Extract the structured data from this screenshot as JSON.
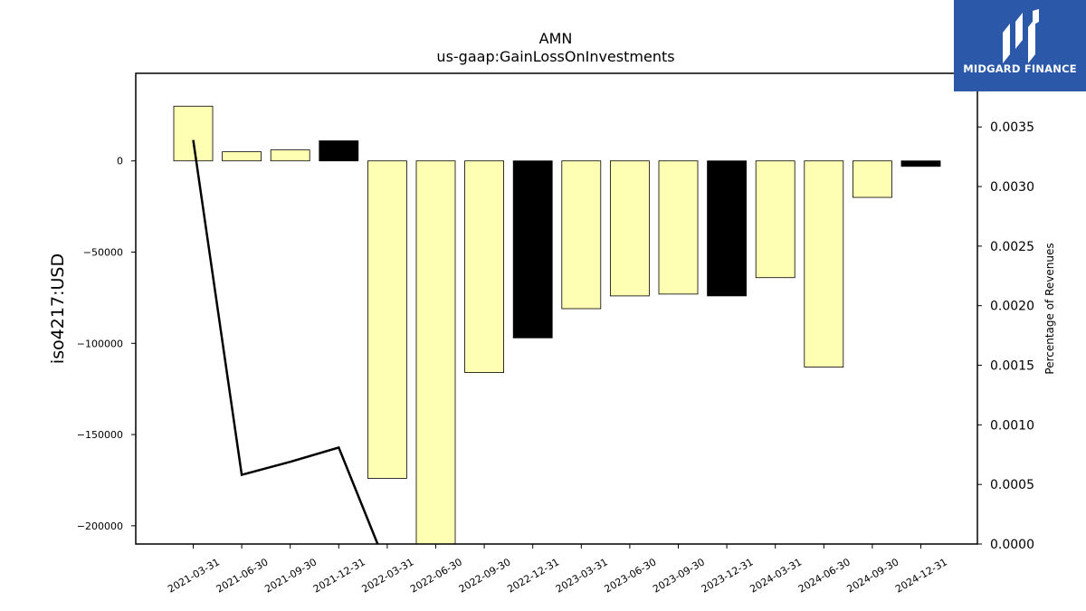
{
  "chart_data": {
    "type": "bar",
    "title": "AMN",
    "subtitle": "us-gaap:GainLossOnInvestments",
    "ylabel": "iso4217:USD",
    "y2label": "Percentage of Revenues",
    "ylim": [
      -210000,
      48000
    ],
    "y2lim": [
      0.0,
      0.00395
    ],
    "yticks": [
      0,
      -50000,
      -100000,
      -150000,
      -200000
    ],
    "y2ticks": [
      0.0,
      0.0005,
      0.001,
      0.0015,
      0.002,
      0.0025,
      0.003,
      0.0035
    ],
    "ytick_labels": [
      "0",
      "−50000",
      "−100000",
      "−150000",
      "−200000"
    ],
    "y2tick_labels": [
      "0.0000",
      "0.0005",
      "0.0010",
      "0.0015",
      "0.0020",
      "0.0025",
      "0.0030",
      "0.0035"
    ],
    "categories": [
      "2021-03-31",
      "2021-06-30",
      "2021-09-30",
      "2021-12-31",
      "2022-03-31",
      "2022-06-30",
      "2022-09-30",
      "2022-12-31",
      "2023-03-31",
      "2023-06-30",
      "2023-09-30",
      "2023-12-31",
      "2024-03-31",
      "2024-06-30",
      "2024-09-30",
      "2024-12-31"
    ],
    "values": [
      30000,
      5000,
      6000,
      11000,
      -174000,
      -215000,
      -116000,
      -97000,
      -81000,
      -74000,
      -73000,
      -74000,
      -64000,
      -113000,
      -20000,
      -3000
    ],
    "bar_colors": [
      "#ffffb3",
      "#ffffb3",
      "#ffffb3",
      "#000000",
      "#ffffb3",
      "#ffffb3",
      "#ffffb3",
      "#000000",
      "#ffffb3",
      "#ffffb3",
      "#ffffb3",
      "#000000",
      "#ffffb3",
      "#ffffb3",
      "#ffffb3",
      "#000000"
    ],
    "line_values": [
      0.00339,
      0.00058,
      0.00069,
      0.00081,
      -0.0002
    ],
    "line_color": "#000000",
    "grid": false
  },
  "logo": {
    "text": "MIDGARD FINANCE"
  }
}
